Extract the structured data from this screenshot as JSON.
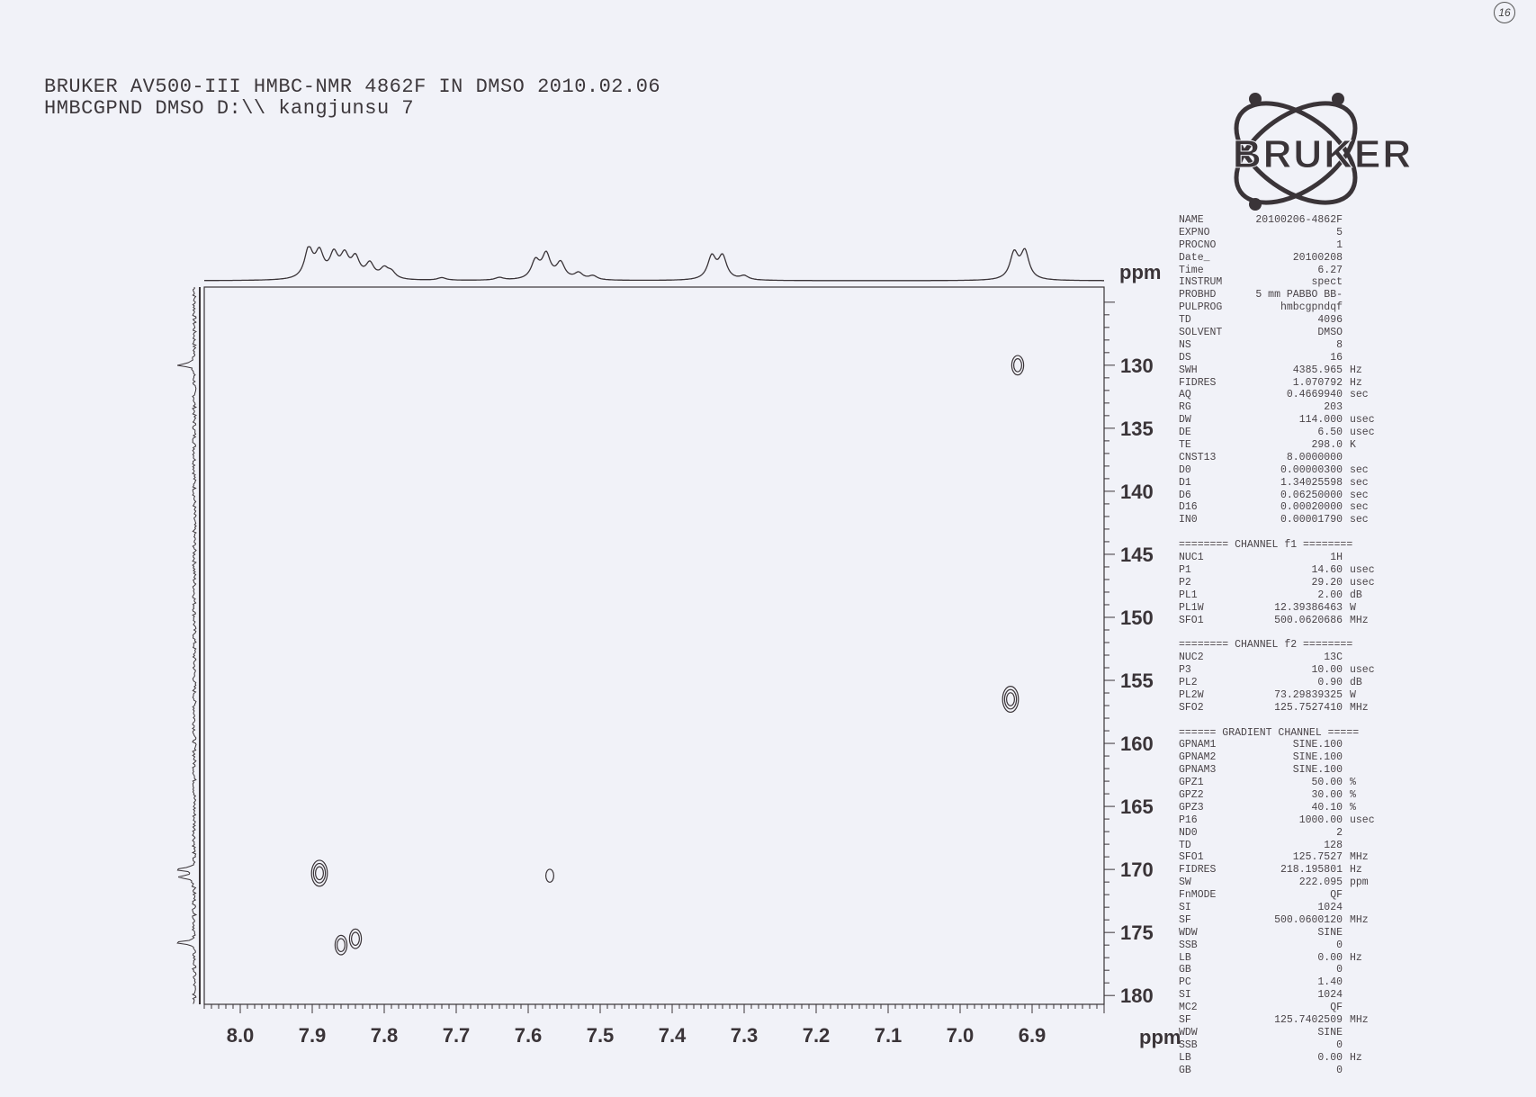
{
  "header": {
    "line1": "BRUKER AV500-III HMBC-NMR 4862F IN DMSO 2010.02.06",
    "line2": "HMBCGPND DMSO D:\\\\ kangjunsu 7"
  },
  "page_number": "16",
  "logo": {
    "text": "BRUKER"
  },
  "parameters": [
    {
      "name": "NAME",
      "value": "20100206-4862F",
      "unit": ""
    },
    {
      "name": "EXPNO",
      "value": "5",
      "unit": ""
    },
    {
      "name": "PROCNO",
      "value": "1",
      "unit": ""
    },
    {
      "name": "Date_",
      "value": "20100208",
      "unit": ""
    },
    {
      "name": "Time",
      "value": "6.27",
      "unit": ""
    },
    {
      "name": "INSTRUM",
      "value": "spect",
      "unit": ""
    },
    {
      "name": "PROBHD",
      "value": "5 mm PABBO BB-",
      "unit": ""
    },
    {
      "name": "PULPROG",
      "value": "hmbcgpndqf",
      "unit": ""
    },
    {
      "name": "TD",
      "value": "4096",
      "unit": ""
    },
    {
      "name": "SOLVENT",
      "value": "DMSO",
      "unit": ""
    },
    {
      "name": "NS",
      "value": "8",
      "unit": ""
    },
    {
      "name": "DS",
      "value": "16",
      "unit": ""
    },
    {
      "name": "SWH",
      "value": "4385.965",
      "unit": "Hz"
    },
    {
      "name": "FIDRES",
      "value": "1.070792",
      "unit": "Hz"
    },
    {
      "name": "AQ",
      "value": "0.4669940",
      "unit": "sec"
    },
    {
      "name": "RG",
      "value": "203",
      "unit": ""
    },
    {
      "name": "DW",
      "value": "114.000",
      "unit": "usec"
    },
    {
      "name": "DE",
      "value": "6.50",
      "unit": "usec"
    },
    {
      "name": "TE",
      "value": "298.0",
      "unit": "K"
    },
    {
      "name": "CNST13",
      "value": "8.0000000",
      "unit": ""
    },
    {
      "name": "D0",
      "value": "0.00000300",
      "unit": "sec"
    },
    {
      "name": "D1",
      "value": "1.34025598",
      "unit": "sec"
    },
    {
      "name": "D6",
      "value": "0.06250000",
      "unit": "sec"
    },
    {
      "name": "D16",
      "value": "0.00020000",
      "unit": "sec"
    },
    {
      "name": "IN0",
      "value": "0.00001790",
      "unit": "sec"
    },
    {
      "blank": true
    },
    {
      "section": "======== CHANNEL f1 ========"
    },
    {
      "name": "NUC1",
      "value": "1H",
      "unit": ""
    },
    {
      "name": "P1",
      "value": "14.60",
      "unit": "usec"
    },
    {
      "name": "P2",
      "value": "29.20",
      "unit": "usec"
    },
    {
      "name": "PL1",
      "value": "2.00",
      "unit": "dB"
    },
    {
      "name": "PL1W",
      "value": "12.39386463",
      "unit": "W"
    },
    {
      "name": "SFO1",
      "value": "500.0620686",
      "unit": "MHz"
    },
    {
      "blank": true
    },
    {
      "section": "======== CHANNEL f2 ========"
    },
    {
      "name": "NUC2",
      "value": "13C",
      "unit": ""
    },
    {
      "name": "P3",
      "value": "10.00",
      "unit": "usec"
    },
    {
      "name": "PL2",
      "value": "0.90",
      "unit": "dB"
    },
    {
      "name": "PL2W",
      "value": "73.29839325",
      "unit": "W"
    },
    {
      "name": "SFO2",
      "value": "125.7527410",
      "unit": "MHz"
    },
    {
      "blank": true
    },
    {
      "section": "====== GRADIENT CHANNEL ====="
    },
    {
      "name": "GPNAM1",
      "value": "SINE.100",
      "unit": ""
    },
    {
      "name": "GPNAM2",
      "value": "SINE.100",
      "unit": ""
    },
    {
      "name": "GPNAM3",
      "value": "SINE.100",
      "unit": ""
    },
    {
      "name": "GPZ1",
      "value": "50.00",
      "unit": "%"
    },
    {
      "name": "GPZ2",
      "value": "30.00",
      "unit": "%"
    },
    {
      "name": "GPZ3",
      "value": "40.10",
      "unit": "%"
    },
    {
      "name": "P16",
      "value": "1000.00",
      "unit": "usec"
    },
    {
      "name": "ND0",
      "value": "2",
      "unit": ""
    },
    {
      "name": "TD",
      "value": "128",
      "unit": ""
    },
    {
      "name": "SFO1",
      "value": "125.7527",
      "unit": "MHz"
    },
    {
      "name": "FIDRES",
      "value": "218.195801",
      "unit": "Hz"
    },
    {
      "name": "SW",
      "value": "222.095",
      "unit": "ppm"
    },
    {
      "name": "FnMODE",
      "value": "QF",
      "unit": ""
    },
    {
      "name": "SI",
      "value": "1024",
      "unit": ""
    },
    {
      "name": "SF",
      "value": "500.0600120",
      "unit": "MHz"
    },
    {
      "name": "WDW",
      "value": "SINE",
      "unit": ""
    },
    {
      "name": "SSB",
      "value": "0",
      "unit": ""
    },
    {
      "name": "LB",
      "value": "0.00",
      "unit": "Hz"
    },
    {
      "name": "GB",
      "value": "0",
      "unit": ""
    },
    {
      "name": "PC",
      "value": "1.40",
      "unit": ""
    },
    {
      "name": "SI",
      "value": "1024",
      "unit": ""
    },
    {
      "name": "MC2",
      "value": "QF",
      "unit": ""
    },
    {
      "name": "SF",
      "value": "125.7402509",
      "unit": "MHz"
    },
    {
      "name": "WDW",
      "value": "SINE",
      "unit": ""
    },
    {
      "name": "SSB",
      "value": "0",
      "unit": ""
    },
    {
      "name": "LB",
      "value": "0.00",
      "unit": "Hz"
    },
    {
      "name": "GB",
      "value": "0",
      "unit": ""
    }
  ],
  "chart_data": {
    "type": "scatter",
    "subtype": "2D HMBC contour plot",
    "xlabel": "ppm",
    "ylabel": "ppm",
    "xlim": [
      8.05,
      6.8
    ],
    "ylim": [
      123.8,
      180.7
    ],
    "x_reversed": true,
    "y_increasing_downward": true,
    "grid": false,
    "x_ticks": [
      "8.0",
      "7.9",
      "7.8",
      "7.7",
      "7.6",
      "7.5",
      "7.4",
      "7.3",
      "7.2",
      "7.1",
      "7.0",
      "6.9"
    ],
    "y_ticks": [
      "130",
      "135",
      "140",
      "145",
      "150",
      "155",
      "160",
      "165",
      "170",
      "175",
      "180"
    ],
    "cross_peaks": [
      {
        "x": 6.92,
        "y": 130.0,
        "levels": 2
      },
      {
        "x": 6.93,
        "y": 156.5,
        "levels": 3
      },
      {
        "x": 7.89,
        "y": 170.3,
        "levels": 3
      },
      {
        "x": 7.57,
        "y": 170.5,
        "levels": 1
      },
      {
        "x": 7.86,
        "y": 176.0,
        "levels": 2
      },
      {
        "x": 7.84,
        "y": 175.5,
        "levels": 2
      }
    ],
    "f2_projection_peaks": [
      {
        "ppm": 7.905,
        "h": 0.9
      },
      {
        "ppm": 7.89,
        "h": 0.75
      },
      {
        "ppm": 7.87,
        "h": 0.7
      },
      {
        "ppm": 7.855,
        "h": 0.65
      },
      {
        "ppm": 7.84,
        "h": 0.6
      },
      {
        "ppm": 7.82,
        "h": 0.45
      },
      {
        "ppm": 7.8,
        "h": 0.3
      },
      {
        "ppm": 7.79,
        "h": 0.2
      },
      {
        "ppm": 7.72,
        "h": 0.08
      },
      {
        "ppm": 7.64,
        "h": 0.08
      },
      {
        "ppm": 7.59,
        "h": 0.55
      },
      {
        "ppm": 7.575,
        "h": 0.75
      },
      {
        "ppm": 7.555,
        "h": 0.5
      },
      {
        "ppm": 7.53,
        "h": 0.2
      },
      {
        "ppm": 7.51,
        "h": 0.12
      },
      {
        "ppm": 7.345,
        "h": 0.7
      },
      {
        "ppm": 7.33,
        "h": 0.7
      },
      {
        "ppm": 7.3,
        "h": 0.12
      },
      {
        "ppm": 6.925,
        "h": 0.8
      },
      {
        "ppm": 6.91,
        "h": 0.85
      }
    ],
    "f1_projection_peaks": [
      {
        "ppm": 130.0,
        "h": 0.9
      },
      {
        "ppm": 170.0,
        "h": 0.95
      },
      {
        "ppm": 170.6,
        "h": 0.8
      },
      {
        "ppm": 175.8,
        "h": 0.9
      }
    ],
    "colors": {
      "ink": "#3a3438",
      "paper": "#f1f2f8"
    }
  }
}
